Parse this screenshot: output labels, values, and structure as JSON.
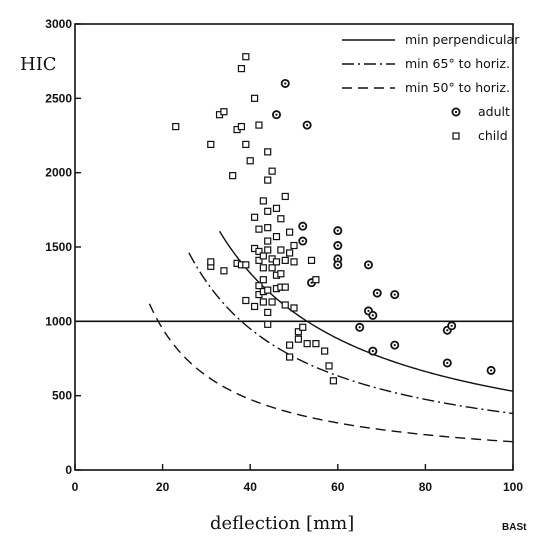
{
  "chart_data": {
    "type": "scatter",
    "xlabel": "deflection [mm]",
    "ylabel": "HIC",
    "xlim": [
      0,
      100
    ],
    "ylim": [
      0,
      3000
    ],
    "xticks": [
      0,
      20,
      40,
      60,
      80,
      100
    ],
    "yticks": [
      0,
      500,
      1000,
      1500,
      2000,
      2500,
      3000
    ],
    "grid": false,
    "legend_position": "top-right",
    "reference_line": {
      "y": 1000
    },
    "curves": [
      {
        "name": "min perpendicular",
        "style": "solid",
        "k": 53000,
        "x_start": 33,
        "x_end": 100
      },
      {
        "name": "min 65° to horiz.",
        "style": "dash-dot",
        "k": 38000,
        "x_start": 26,
        "x_end": 100
      },
      {
        "name": "min 50° to horiz.",
        "style": "dashed",
        "k": 19000,
        "x_start": 17,
        "x_end": 100
      }
    ],
    "series": [
      {
        "name": "adult",
        "marker": "circle-dot",
        "points": [
          [
            48,
            2600
          ],
          [
            46,
            2390
          ],
          [
            53,
            2320
          ],
          [
            52,
            1640
          ],
          [
            52,
            1540
          ],
          [
            54,
            1260
          ],
          [
            60,
            1610
          ],
          [
            60,
            1510
          ],
          [
            60,
            1420
          ],
          [
            60,
            1380
          ],
          [
            67,
            1380
          ],
          [
            69,
            1190
          ],
          [
            73,
            1180
          ],
          [
            67,
            1070
          ],
          [
            68,
            1040
          ],
          [
            65,
            960
          ],
          [
            68,
            800
          ],
          [
            73,
            840
          ],
          [
            85,
            940
          ],
          [
            86,
            970
          ],
          [
            85,
            720
          ],
          [
            95,
            670
          ]
        ]
      },
      {
        "name": "child",
        "marker": "square",
        "points": [
          [
            23,
            2310
          ],
          [
            31,
            2190
          ],
          [
            31,
            1370
          ],
          [
            31,
            1400
          ],
          [
            33,
            2390
          ],
          [
            34,
            2410
          ],
          [
            34,
            1340
          ],
          [
            36,
            1980
          ],
          [
            37,
            2290
          ],
          [
            37,
            1390
          ],
          [
            38,
            2700
          ],
          [
            38,
            2310
          ],
          [
            38,
            1380
          ],
          [
            39,
            2780
          ],
          [
            39,
            2190
          ],
          [
            39,
            1380
          ],
          [
            39,
            1140
          ],
          [
            40,
            2080
          ],
          [
            41,
            2500
          ],
          [
            41,
            1700
          ],
          [
            41,
            1490
          ],
          [
            41,
            1100
          ],
          [
            42,
            2320
          ],
          [
            42,
            1620
          ],
          [
            42,
            1470
          ],
          [
            42,
            1410
          ],
          [
            42,
            1240
          ],
          [
            42,
            1180
          ],
          [
            43,
            1810
          ],
          [
            43,
            1440
          ],
          [
            43,
            1360
          ],
          [
            43,
            1280
          ],
          [
            43,
            1200
          ],
          [
            43,
            1130
          ],
          [
            44,
            2140
          ],
          [
            44,
            1950
          ],
          [
            44,
            1740
          ],
          [
            44,
            1630
          ],
          [
            44,
            1540
          ],
          [
            44,
            1480
          ],
          [
            44,
            1210
          ],
          [
            44,
            1060
          ],
          [
            44,
            980
          ],
          [
            45,
            2010
          ],
          [
            45,
            1420
          ],
          [
            45,
            1360
          ],
          [
            45,
            1130
          ],
          [
            46,
            1760
          ],
          [
            46,
            1570
          ],
          [
            46,
            1400
          ],
          [
            46,
            1310
          ],
          [
            46,
            1220
          ],
          [
            47,
            1690
          ],
          [
            47,
            1480
          ],
          [
            47,
            1320
          ],
          [
            47,
            1230
          ],
          [
            48,
            1840
          ],
          [
            48,
            1410
          ],
          [
            48,
            1230
          ],
          [
            48,
            1110
          ],
          [
            49,
            1600
          ],
          [
            49,
            1460
          ],
          [
            49,
            840
          ],
          [
            49,
            760
          ],
          [
            50,
            1510
          ],
          [
            50,
            1400
          ],
          [
            50,
            1090
          ],
          [
            51,
            930
          ],
          [
            51,
            880
          ],
          [
            52,
            960
          ],
          [
            53,
            850
          ],
          [
            54,
            1410
          ],
          [
            55,
            1280
          ],
          [
            55,
            850
          ],
          [
            57,
            800
          ],
          [
            58,
            700
          ],
          [
            59,
            600
          ]
        ]
      }
    ]
  },
  "credit": "BASt"
}
